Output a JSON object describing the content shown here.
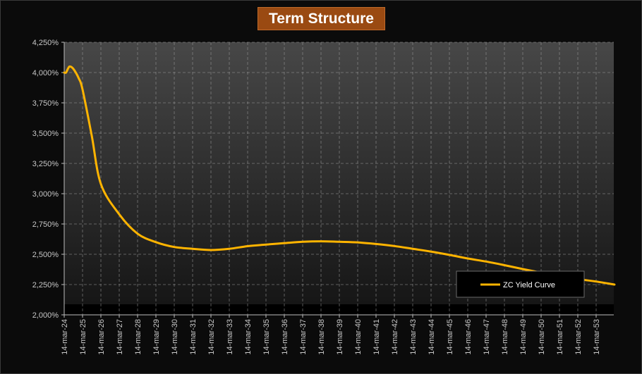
{
  "chart_data": {
    "type": "line",
    "title": "Term Structure",
    "xlabel": "",
    "ylabel": "",
    "ylim": [
      2.0,
      4.25
    ],
    "y_ticks": [
      "2,000%",
      "2,250%",
      "2,500%",
      "2,750%",
      "3,000%",
      "3,250%",
      "3,500%",
      "3,750%",
      "4,000%",
      "4,250%"
    ],
    "x_ticks": [
      "14-mar-24",
      "14-mar-25",
      "14-mar-26",
      "14-mar-27",
      "14-mar-28",
      "14-mar-29",
      "14-mar-30",
      "14-mar-31",
      "14-mar-32",
      "14-mar-33",
      "14-mar-34",
      "14-mar-35",
      "14-mar-36",
      "14-mar-37",
      "14-mar-38",
      "14-mar-39",
      "14-mar-40",
      "14-mar-41",
      "14-mar-42",
      "14-mar-43",
      "14-mar-44",
      "14-mar-45",
      "14-mar-46",
      "14-mar-47",
      "14-mar-48",
      "14-mar-49",
      "14-mar-50",
      "14-mar-51",
      "14-mar-52",
      "14-mar-53"
    ],
    "grid": true,
    "legend_position": "bottom-right",
    "series": [
      {
        "name": "ZC Yield Curve",
        "color": "#ffb400",
        "x": [
          2024.0,
          2024.1,
          2024.2,
          2024.3,
          2024.5,
          2024.8,
          2025.0,
          2025.5,
          2026.0,
          2027.0,
          2028.0,
          2029.0,
          2030.0,
          2031.0,
          2032.0,
          2033.0,
          2034.0,
          2035.0,
          2036.0,
          2037.0,
          2038.0,
          2039.0,
          2040.0,
          2041.0,
          2042.0,
          2043.0,
          2044.0,
          2045.0,
          2046.0,
          2047.0,
          2048.0,
          2049.0,
          2050.0,
          2051.0,
          2052.0,
          2053.0,
          2054.0
        ],
        "values": [
          4.0,
          4.0,
          4.03,
          4.05,
          4.03,
          3.95,
          3.86,
          3.48,
          3.08,
          2.83,
          2.67,
          2.6,
          2.56,
          2.545,
          2.535,
          2.545,
          2.567,
          2.58,
          2.592,
          2.603,
          2.607,
          2.603,
          2.598,
          2.585,
          2.568,
          2.545,
          2.522,
          2.495,
          2.465,
          2.44,
          2.41,
          2.378,
          2.348,
          2.318,
          2.295,
          2.275,
          2.25
        ]
      }
    ]
  }
}
